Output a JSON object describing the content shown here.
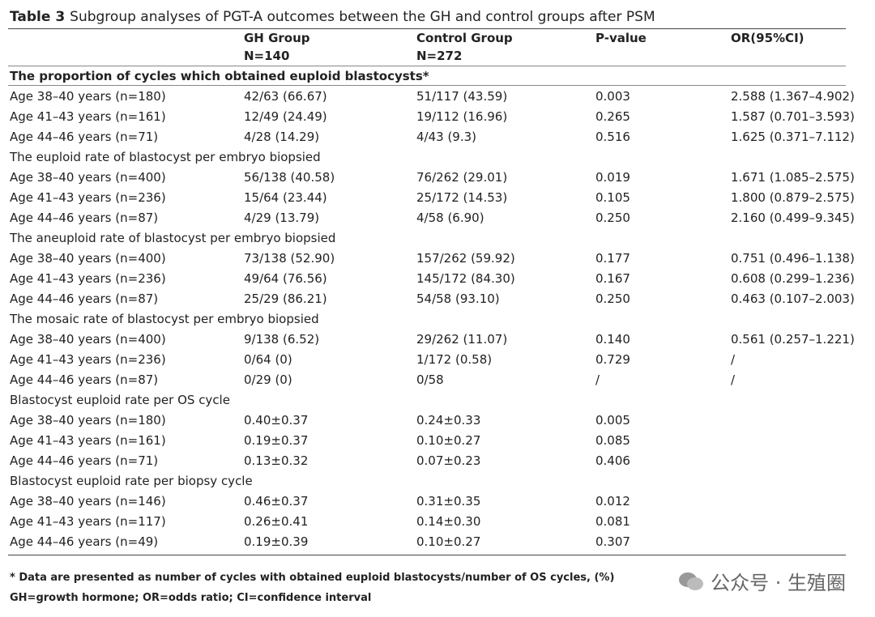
{
  "title": {
    "label": "Table 3",
    "text": "Subgroup analyses of PGT-A outcomes between the GH and control groups after PSM"
  },
  "table": {
    "header": [
      [
        "",
        ""
      ],
      [
        "GH Group",
        "N=140"
      ],
      [
        "Control Group",
        "N=272"
      ],
      [
        "P-value",
        ""
      ],
      [
        "OR(95%CI)",
        ""
      ]
    ],
    "rows": [
      {
        "section": "The proportion of cycles which obtained euploid blastocysts*",
        "bold": true
      },
      {
        "cells": [
          "Age 38–40 years (n=180)",
          "42/63 (66.67)",
          "51/117 (43.59)",
          "0.003",
          "2.588 (1.367–4.902)"
        ]
      },
      {
        "cells": [
          "Age 41–43 years (n=161)",
          "12/49 (24.49)",
          "19/112 (16.96)",
          "0.265",
          "1.587 (0.701–3.593)"
        ]
      },
      {
        "cells": [
          "Age 44–46 years (n=71)",
          "4/28 (14.29)",
          "4/43 (9.3)",
          "0.516",
          "1.625 (0.371–7.112)"
        ]
      },
      {
        "section": "The euploid rate of blastocyst per embryo biopsied"
      },
      {
        "cells": [
          "Age 38–40 years (n=400)",
          "56/138 (40.58)",
          "76/262 (29.01)",
          "0.019",
          "1.671 (1.085–2.575)"
        ]
      },
      {
        "cells": [
          "Age 41–43 years (n=236)",
          "15/64 (23.44)",
          "25/172 (14.53)",
          "0.105",
          "1.800 (0.879–2.575)"
        ]
      },
      {
        "cells": [
          "Age 44–46 years (n=87)",
          "4/29 (13.79)",
          "4/58 (6.90)",
          "0.250",
          "2.160 (0.499–9.345)"
        ]
      },
      {
        "section": "The aneuploid rate of blastocyst per embryo biopsied"
      },
      {
        "cells": [
          "Age 38–40 years (n=400)",
          "73/138 (52.90)",
          "157/262 (59.92)",
          "0.177",
          "0.751 (0.496–1.138)"
        ]
      },
      {
        "cells": [
          "Age 41–43 years (n=236)",
          "49/64 (76.56)",
          "145/172 (84.30)",
          "0.167",
          "0.608 (0.299–1.236)"
        ]
      },
      {
        "cells": [
          "Age 44–46 years (n=87)",
          "25/29 (86.21)",
          "54/58 (93.10)",
          "0.250",
          "0.463 (0.107–2.003)"
        ]
      },
      {
        "section": "The mosaic rate of blastocyst per embryo biopsied"
      },
      {
        "cells": [
          "Age 38–40 years (n=400)",
          "9/138 (6.52)",
          "29/262 (11.07)",
          "0.140",
          "0.561 (0.257–1.221)"
        ]
      },
      {
        "cells": [
          "Age 41–43 years (n=236)",
          "0/64 (0)",
          "1/172 (0.58)",
          "0.729",
          "/"
        ]
      },
      {
        "cells": [
          "Age 44–46 years (n=87)",
          "0/29 (0)",
          "0/58",
          "/",
          "/"
        ]
      },
      {
        "section": "Blastocyst euploid rate per OS cycle"
      },
      {
        "cells": [
          "Age 38–40 years (n=180)",
          "0.40±0.37",
          "0.24±0.33",
          "0.005",
          ""
        ]
      },
      {
        "cells": [
          "Age 41–43 years (n=161)",
          "0.19±0.37",
          "0.10±0.27",
          "0.085",
          ""
        ]
      },
      {
        "cells": [
          "Age 44–46 years (n=71)",
          "0.13±0.32",
          "0.07±0.23",
          "0.406",
          ""
        ]
      },
      {
        "section": "Blastocyst euploid rate per biopsy cycle"
      },
      {
        "cells": [
          "Age 38–40 years (n=146)",
          "0.46±0.37",
          "0.31±0.35",
          "0.012",
          ""
        ]
      },
      {
        "cells": [
          "Age 41–43 years (n=117)",
          "0.26±0.41",
          "0.14±0.30",
          "0.081",
          ""
        ]
      },
      {
        "cells": [
          "Age 44–46 years (n=49)",
          "0.19±0.39",
          "0.10±0.27",
          "0.307",
          ""
        ]
      }
    ]
  },
  "footnotes": [
    "* Data are presented as number of cycles with obtained euploid blastocysts/number of OS cycles, (%)",
    "GH=growth hormone; OR=odds ratio; CI=confidence interval"
  ],
  "watermark": "公众号 · 生殖圈"
}
